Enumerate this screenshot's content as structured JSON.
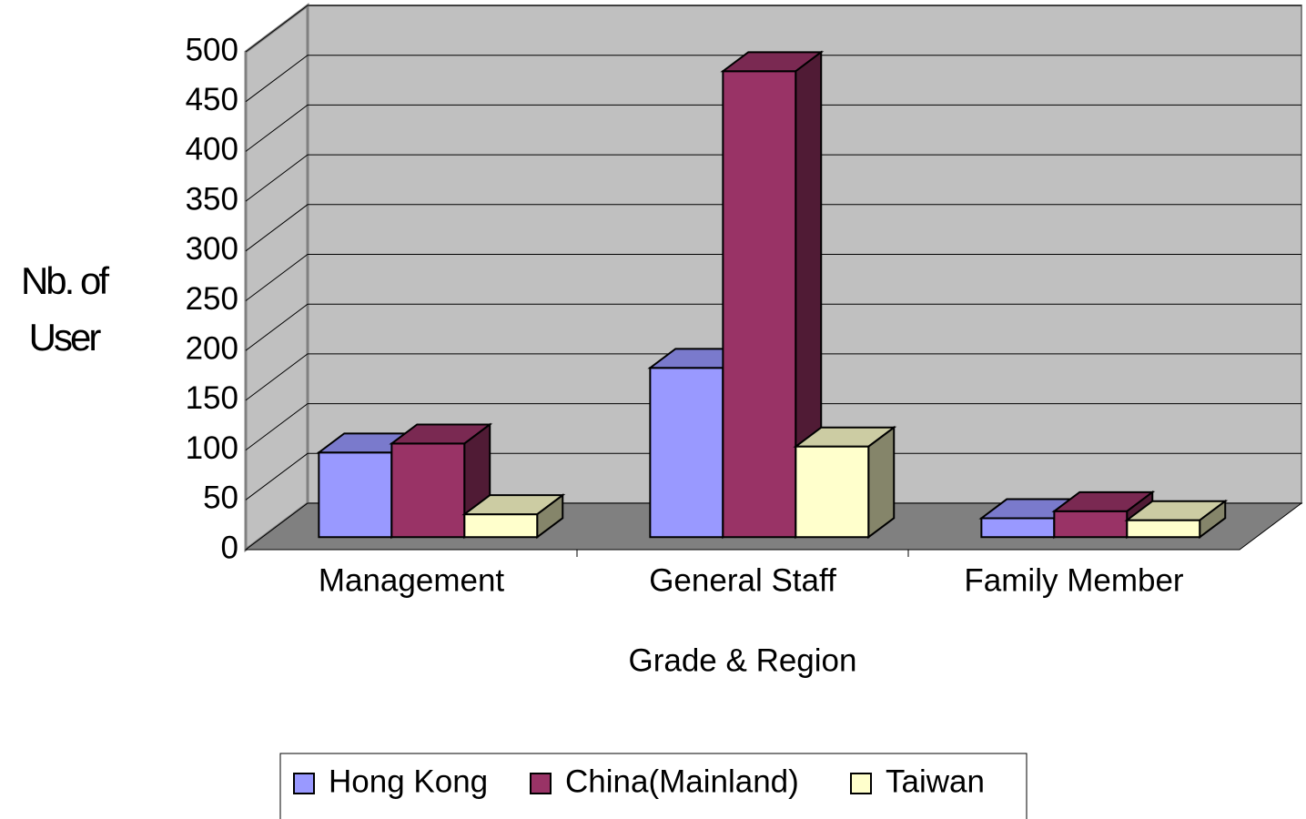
{
  "chart_data": {
    "type": "bar3d",
    "ylabel": "Nb. of User",
    "xlabel": "Grade & Region",
    "categories": [
      "Management",
      "General Staff",
      "Family Member"
    ],
    "series": [
      {
        "name": "Hong Kong",
        "color": "#9999ff",
        "values": [
          85,
          170,
          19
        ]
      },
      {
        "name": "China(Mainland)",
        "color": "#993366",
        "values": [
          94,
          468,
          26
        ]
      },
      {
        "name": "Taiwan",
        "color": "#ffffcc",
        "values": [
          23,
          91,
          17
        ]
      }
    ],
    "ylim": [
      0,
      500
    ],
    "yticks": [
      0,
      50,
      100,
      150,
      200,
      250,
      300,
      350,
      400,
      450,
      500
    ],
    "grid": true,
    "legend": "bottom"
  }
}
